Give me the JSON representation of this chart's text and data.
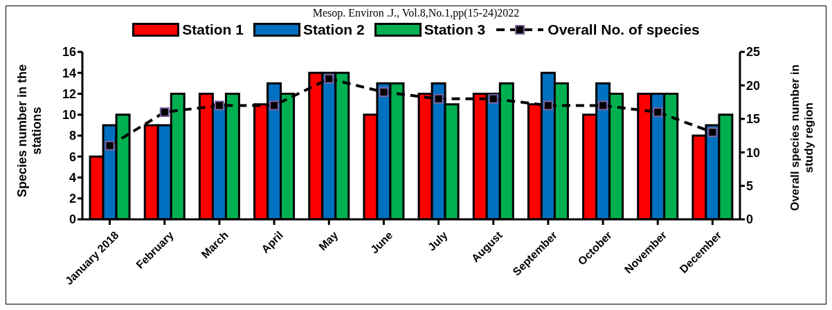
{
  "chart_data": {
    "type": "bar",
    "annotations": [
      "Mesop. Environ .J., Vol.8,No.1,pp(15-24)2022"
    ],
    "categories": [
      "January 2018",
      "February",
      "March",
      "April",
      "May",
      "June",
      "July",
      "August",
      "September",
      "October",
      "November",
      "December"
    ],
    "ylabel": "Species number in the stations",
    "y2label": "Overall species  number in study region",
    "ylim": [
      0,
      16
    ],
    "yticks": [
      0,
      2,
      4,
      6,
      8,
      10,
      12,
      14,
      16
    ],
    "y2lim": [
      0,
      25
    ],
    "y2ticks": [
      0,
      5,
      10,
      15,
      20,
      25
    ],
    "legend": "top",
    "grid": false,
    "series": [
      {
        "name": "Station 1",
        "color": "#ff0000",
        "values": [
          6,
          9,
          12,
          11,
          14,
          10,
          12,
          12,
          11,
          10,
          12,
          8
        ]
      },
      {
        "name": "Station 2",
        "color": "#0070c0",
        "values": [
          9,
          9,
          11,
          13,
          14,
          13,
          13,
          12,
          14,
          13,
          12,
          9
        ]
      },
      {
        "name": "Station 3",
        "color": "#00b050",
        "values": [
          10,
          12,
          12,
          12,
          14,
          13,
          11,
          13,
          13,
          12,
          12,
          10
        ]
      },
      {
        "name": "Overall No. of species",
        "type": "line",
        "axis": "y2",
        "color": "#000000",
        "marker": "square",
        "line_style": "dashed",
        "values": [
          11,
          16,
          17,
          17,
          21,
          19,
          18,
          18,
          17,
          17,
          16,
          13
        ]
      }
    ]
  }
}
